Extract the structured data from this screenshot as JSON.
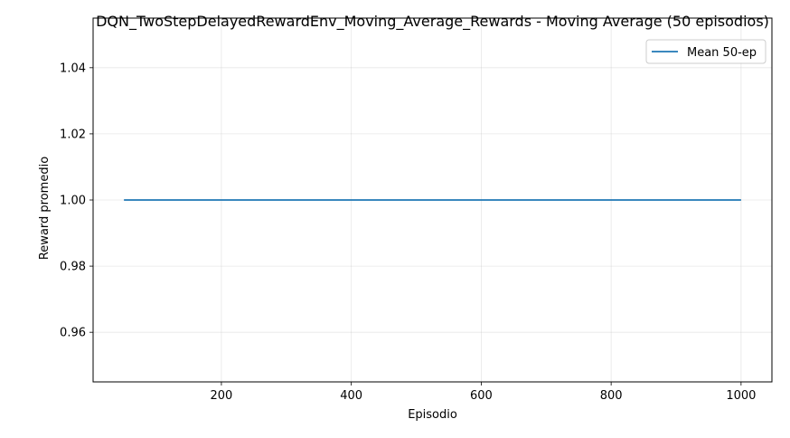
{
  "chart_data": {
    "type": "line",
    "title": "DQN_TwoStepDelayedRewardEnv_Moving_Average_Rewards - Moving Average (50 episodios)",
    "xlabel": "Episodio",
    "ylabel": "Reward promedio",
    "xlim": [
      2.5,
      1047.5
    ],
    "ylim": [
      0.945,
      1.055
    ],
    "xticks": [
      200,
      400,
      600,
      800,
      1000
    ],
    "xtick_labels": [
      "200",
      "400",
      "600",
      "800",
      "1000"
    ],
    "yticks": [
      0.96,
      0.98,
      1.0,
      1.02,
      1.04
    ],
    "ytick_labels": [
      "0.96",
      "0.98",
      "1.00",
      "1.02",
      "1.04"
    ],
    "grid": true,
    "legend_position": "upper-right",
    "series": [
      {
        "name": "Mean 50-ep",
        "color": "#1f77b4",
        "x": [
          50,
          1000
        ],
        "y": [
          1.0,
          1.0
        ]
      }
    ]
  }
}
